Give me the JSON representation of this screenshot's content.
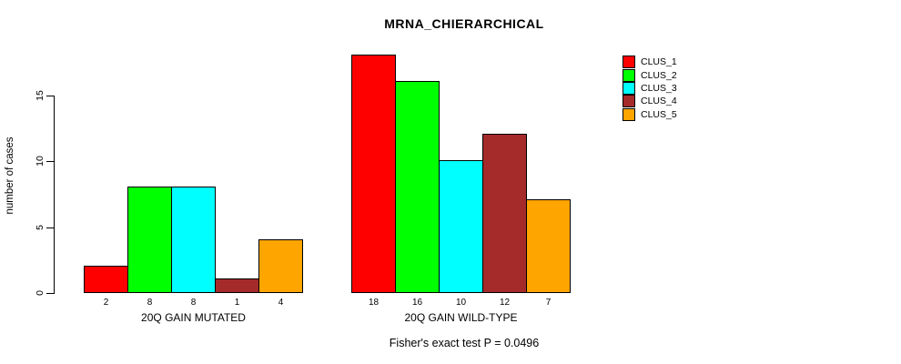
{
  "title": "MRNA_CHIERARCHICAL",
  "footer_annotation": "Fisher's exact test P = 0.0496",
  "y_axis": {
    "label": "number of cases",
    "ticks": [
      "0",
      "5",
      "10",
      "15"
    ]
  },
  "legend": {
    "items": [
      {
        "label": "CLUS_1",
        "color": "#FF0000"
      },
      {
        "label": "CLUS_2",
        "color": "#00FF00"
      },
      {
        "label": "CLUS_3",
        "color": "#00FFFF"
      },
      {
        "label": "CLUS_4",
        "color": "#A52A2A"
      },
      {
        "label": "CLUS_5",
        "color": "#FFA500"
      }
    ]
  },
  "chart_data": {
    "type": "bar",
    "title": "MRNA_CHIERARCHICAL",
    "ylabel": "number of cases",
    "ylim": [
      0,
      15
    ],
    "yticks": [
      0,
      5,
      10,
      15
    ],
    "categories": [
      "CLUS_1",
      "CLUS_2",
      "CLUS_3",
      "CLUS_4",
      "CLUS_5"
    ],
    "colors": [
      "#FF0000",
      "#00FF00",
      "#00FFFF",
      "#A52A2A",
      "#FFA500"
    ],
    "groups": [
      {
        "label": "20Q GAIN MUTATED",
        "values": [
          2,
          8,
          8,
          1,
          4
        ]
      },
      {
        "label": "20Q GAIN WILD-TYPE",
        "values": [
          18,
          16,
          10,
          12,
          7
        ]
      }
    ],
    "bar_value_labels_shown": true,
    "annotation": "Fisher's exact test P = 0.0496",
    "legend_position": "top-right",
    "grid": false
  }
}
